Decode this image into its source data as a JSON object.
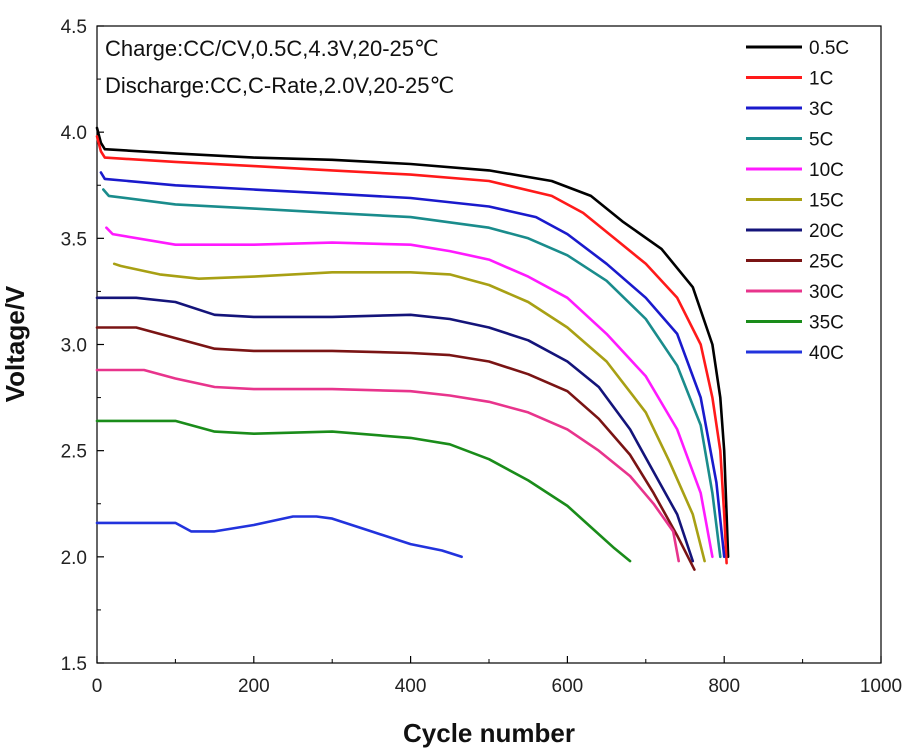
{
  "chart_data": {
    "type": "line",
    "title": "",
    "xlabel": "Cycle number",
    "ylabel": "Voltage/V",
    "xlim": [
      0,
      1000
    ],
    "ylim": [
      1.5,
      4.5
    ],
    "xticks": [
      0,
      200,
      400,
      600,
      800,
      1000
    ],
    "yticks": [
      1.5,
      2.0,
      2.5,
      3.0,
      3.5,
      4.0,
      4.5
    ],
    "xtick_labels": [
      "0",
      "200",
      "400",
      "600",
      "800",
      "1000"
    ],
    "ytick_labels": [
      "1.5",
      "2.0",
      "2.5",
      "3.0",
      "3.5",
      "4.0",
      "4.5"
    ],
    "annotations": [
      "Charge:CC/CV,0.5C,4.3V,20-25℃",
      "Discharge:CC,C-Rate,2.0V,20-25℃"
    ],
    "legend_position": "top-right",
    "grid": false,
    "series": [
      {
        "name": "0.5C",
        "color": "#000000",
        "x": [
          0,
          5,
          10,
          100,
          200,
          300,
          400,
          500,
          580,
          630,
          670,
          720,
          760,
          785,
          795,
          800,
          803,
          805
        ],
        "y": [
          4.02,
          3.95,
          3.92,
          3.9,
          3.88,
          3.87,
          3.85,
          3.82,
          3.77,
          3.7,
          3.58,
          3.45,
          3.27,
          3.0,
          2.75,
          2.5,
          2.2,
          2.0
        ]
      },
      {
        "name": "1C",
        "color": "#ff1a1a",
        "x": [
          0,
          5,
          10,
          100,
          200,
          300,
          400,
          500,
          580,
          620,
          660,
          700,
          740,
          770,
          785,
          795,
          800,
          803
        ],
        "y": [
          3.98,
          3.91,
          3.88,
          3.86,
          3.84,
          3.82,
          3.8,
          3.77,
          3.7,
          3.62,
          3.5,
          3.38,
          3.22,
          3.0,
          2.75,
          2.5,
          2.2,
          1.97
        ]
      },
      {
        "name": "3C",
        "color": "#1a1acc",
        "x": [
          5,
          10,
          100,
          200,
          300,
          400,
          500,
          560,
          600,
          650,
          700,
          740,
          770,
          790,
          800
        ],
        "y": [
          3.81,
          3.78,
          3.75,
          3.73,
          3.71,
          3.69,
          3.65,
          3.6,
          3.52,
          3.38,
          3.22,
          3.05,
          2.75,
          2.35,
          2.0
        ]
      },
      {
        "name": "5C",
        "color": "#1a8c8c",
        "x": [
          8,
          15,
          100,
          200,
          300,
          400,
          500,
          550,
          600,
          650,
          700,
          740,
          770,
          785,
          795
        ],
        "y": [
          3.73,
          3.7,
          3.66,
          3.64,
          3.62,
          3.6,
          3.55,
          3.5,
          3.42,
          3.3,
          3.12,
          2.9,
          2.62,
          2.3,
          2.0
        ]
      },
      {
        "name": "10C",
        "color": "#ff1aff",
        "x": [
          12,
          20,
          100,
          200,
          300,
          400,
          450,
          500,
          550,
          600,
          650,
          700,
          740,
          770,
          785
        ],
        "y": [
          3.55,
          3.52,
          3.47,
          3.47,
          3.48,
          3.47,
          3.44,
          3.4,
          3.32,
          3.22,
          3.05,
          2.85,
          2.6,
          2.3,
          2.0
        ]
      },
      {
        "name": "15C",
        "color": "#a8a014",
        "x": [
          22,
          30,
          80,
          130,
          200,
          300,
          400,
          450,
          500,
          550,
          600,
          650,
          700,
          730,
          760,
          775
        ],
        "y": [
          3.38,
          3.37,
          3.33,
          3.31,
          3.32,
          3.34,
          3.34,
          3.33,
          3.28,
          3.2,
          3.08,
          2.92,
          2.68,
          2.45,
          2.2,
          1.98
        ]
      },
      {
        "name": "20C",
        "color": "#14147a",
        "x": [
          0,
          50,
          100,
          150,
          200,
          300,
          400,
          450,
          500,
          550,
          600,
          640,
          680,
          710,
          740,
          760
        ],
        "y": [
          3.22,
          3.22,
          3.2,
          3.14,
          3.13,
          3.13,
          3.14,
          3.12,
          3.08,
          3.02,
          2.92,
          2.8,
          2.6,
          2.4,
          2.2,
          1.98
        ]
      },
      {
        "name": "25C",
        "color": "#7a1414",
        "x": [
          0,
          50,
          100,
          150,
          200,
          300,
          400,
          450,
          500,
          550,
          600,
          640,
          680,
          710,
          740,
          762
        ],
        "y": [
          3.08,
          3.08,
          3.03,
          2.98,
          2.97,
          2.97,
          2.96,
          2.95,
          2.92,
          2.86,
          2.78,
          2.65,
          2.48,
          2.3,
          2.1,
          1.94
        ]
      },
      {
        "name": "30C",
        "color": "#e8348c",
        "x": [
          0,
          60,
          100,
          150,
          200,
          300,
          400,
          450,
          500,
          550,
          600,
          640,
          680,
          710,
          735,
          742
        ],
        "y": [
          2.88,
          2.88,
          2.84,
          2.8,
          2.79,
          2.79,
          2.78,
          2.76,
          2.73,
          2.68,
          2.6,
          2.5,
          2.38,
          2.25,
          2.12,
          1.98
        ]
      },
      {
        "name": "35C",
        "color": "#1a8c1a",
        "x": [
          0,
          50,
          100,
          150,
          200,
          300,
          400,
          450,
          500,
          550,
          600,
          630,
          660,
          680
        ],
        "y": [
          2.64,
          2.64,
          2.64,
          2.59,
          2.58,
          2.59,
          2.56,
          2.53,
          2.46,
          2.36,
          2.24,
          2.14,
          2.04,
          1.98
        ]
      },
      {
        "name": "40C",
        "color": "#2233dd",
        "x": [
          0,
          50,
          100,
          120,
          150,
          200,
          250,
          280,
          300,
          350,
          400,
          440,
          465
        ],
        "y": [
          2.16,
          2.16,
          2.16,
          2.12,
          2.12,
          2.15,
          2.19,
          2.19,
          2.18,
          2.12,
          2.06,
          2.03,
          2.0
        ]
      }
    ]
  }
}
